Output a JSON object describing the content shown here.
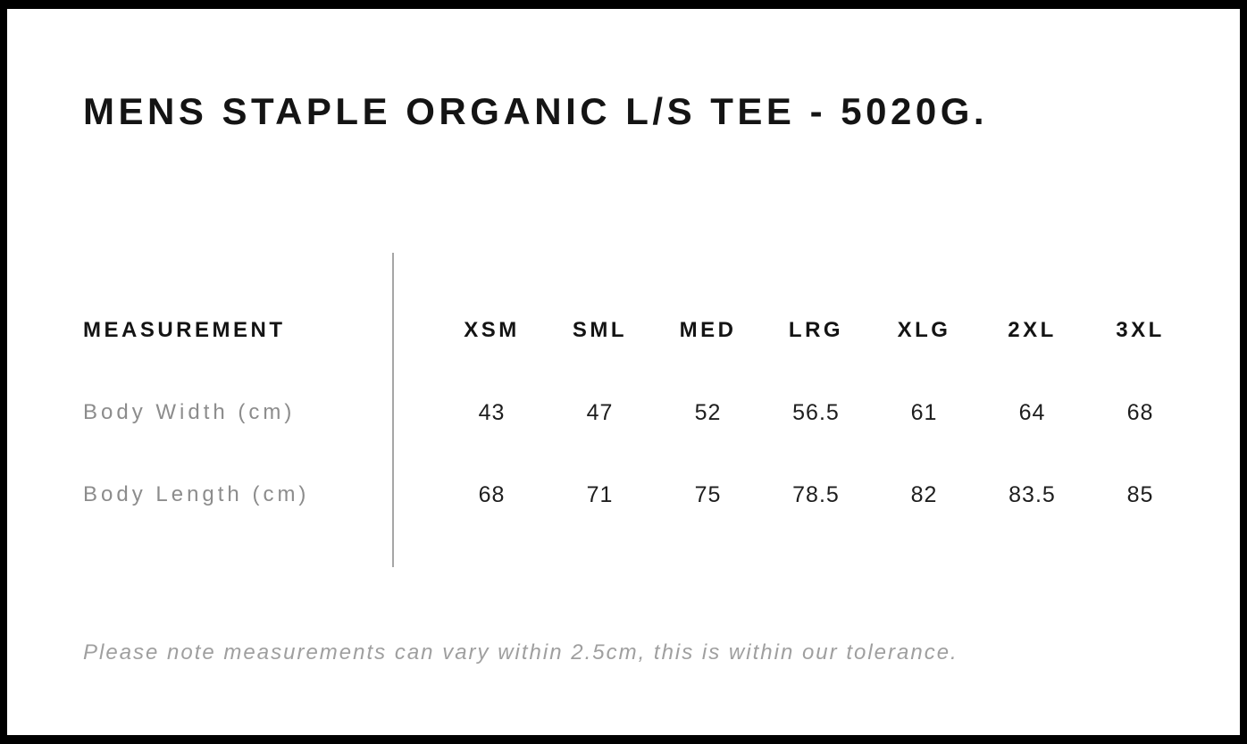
{
  "header": {
    "title": "MENS STAPLE ORGANIC L/S TEE - 5020G."
  },
  "size_chart": {
    "measurement_header": "MEASUREMENT",
    "sizes": [
      "XSM",
      "SML",
      "MED",
      "LRG",
      "XLG",
      "2XL",
      "3XL"
    ],
    "rows": [
      {
        "label": "Body Width (cm)",
        "values": [
          "43",
          "47",
          "52",
          "56.5",
          "61",
          "64",
          "68"
        ]
      },
      {
        "label": "Body Length (cm)",
        "values": [
          "68",
          "71",
          "75",
          "78.5",
          "82",
          "83.5",
          "85"
        ]
      }
    ],
    "tolerance_note": "Please note measurements can vary within 2.5cm, this is within our tolerance."
  },
  "colors": {
    "frame_border": "#000000",
    "background": "#ffffff",
    "title_text": "#141414",
    "header_text": "#141414",
    "value_text": "#1e1e1e",
    "row_label_text": "#8c8c8c",
    "note_text": "#9f9f9f",
    "divider_line": "#a6a6a6"
  },
  "chart_data": {
    "type": "table",
    "title": "MENS STAPLE ORGANIC L/S TEE - 5020G.",
    "columns": [
      "MEASUREMENT",
      "XSM",
      "SML",
      "MED",
      "LRG",
      "XLG",
      "2XL",
      "3XL"
    ],
    "rows": [
      [
        "Body Width (cm)",
        43,
        47,
        52,
        56.5,
        61,
        64,
        68
      ],
      [
        "Body Length (cm)",
        68,
        71,
        75,
        78.5,
        82,
        83.5,
        85
      ]
    ],
    "footnote": "Please note measurements can vary within 2.5cm, this is within our tolerance."
  }
}
